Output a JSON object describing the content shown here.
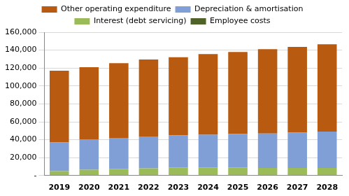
{
  "chart_data": {
    "type": "bar",
    "stacked": true,
    "grid": true,
    "legend": "top",
    "categories": [
      "2019",
      "2020",
      "2021",
      "2022",
      "2023",
      "2024",
      "2025",
      "2026",
      "2027",
      "2028"
    ],
    "series": [
      {
        "name": "Employee costs",
        "color": "#4f6228",
        "values": [
          0,
          0,
          0,
          0,
          0,
          0,
          0,
          0,
          0,
          0
        ]
      },
      {
        "name": "Interest (debt servicing)",
        "color": "#9bbb59",
        "values": [
          5000,
          6500,
          7500,
          8000,
          9000,
          9000,
          9000,
          8500,
          8500,
          8500
        ]
      },
      {
        "name": "Depreciation & amortisation",
        "color": "#7f9fd6",
        "values": [
          32000,
          33500,
          34500,
          35500,
          36000,
          36500,
          37500,
          38500,
          39500,
          40500
        ]
      },
      {
        "name": "Other operating expenditure",
        "color": "#b85a10",
        "values": [
          80000,
          81000,
          83500,
          86000,
          87000,
          90000,
          91500,
          94000,
          95500,
          97500
        ]
      }
    ],
    "ylim": [
      0,
      160000
    ],
    "yticks": [
      {
        "value": 0,
        "label": "-"
      },
      {
        "value": 20000,
        "label": "20,000"
      },
      {
        "value": 40000,
        "label": "40,000"
      },
      {
        "value": 60000,
        "label": "60,000"
      },
      {
        "value": 80000,
        "label": "80,000"
      },
      {
        "value": 100000,
        "label": "100,000"
      },
      {
        "value": 120000,
        "label": "120,000"
      },
      {
        "value": 140000,
        "label": "140,000"
      },
      {
        "value": 160000,
        "label": "160,000"
      }
    ]
  }
}
